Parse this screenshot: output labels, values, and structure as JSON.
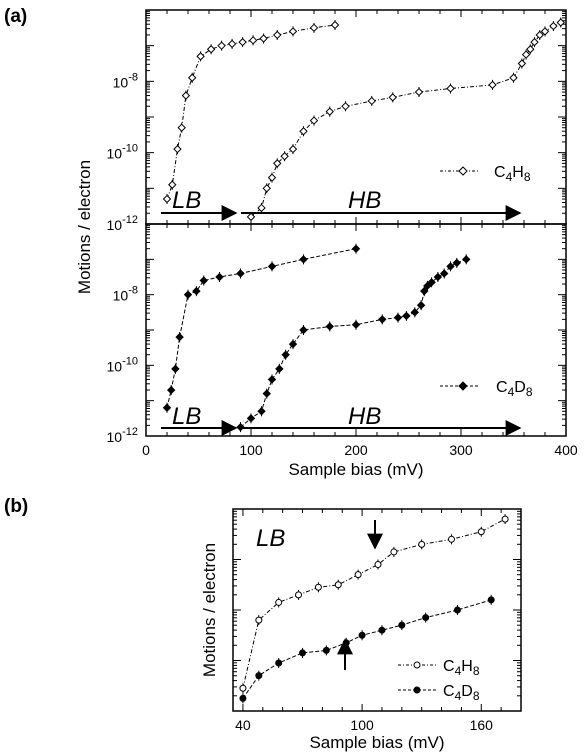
{
  "panels": {
    "a_label": "(a)",
    "b_label": "(b)"
  },
  "chart_data": [
    {
      "id": "a-top",
      "type": "scatter",
      "xlabel": "",
      "ylabel": "Motions / electron",
      "ylim_log10": [
        -12,
        -6
      ],
      "y_scale": "log",
      "y_ticks": [
        {
          "exp": -8,
          "label": "10",
          "sup": "-8"
        },
        {
          "exp": -10,
          "label": "10",
          "sup": "-10"
        },
        {
          "exp": -12,
          "label": "10",
          "sup": "-12"
        }
      ],
      "xlim": [
        0,
        400
      ],
      "x_ticks": [
        0,
        100,
        200,
        300,
        400
      ],
      "grid": false,
      "legend": {
        "position": "right",
        "entries": [
          {
            "text": "C",
            "sub": "4",
            "text2": "H",
            "sub2": "8"
          }
        ]
      },
      "annotations": {
        "left_label": "LB",
        "right_label": "HB"
      },
      "series": [
        {
          "marker": "open",
          "curve": "lb",
          "points": [
            {
              "x": 20,
              "y": -11.3
            },
            {
              "x": 25,
              "y": -10.9
            },
            {
              "x": 30,
              "y": -9.9
            },
            {
              "x": 34,
              "y": -9.3
            },
            {
              "x": 38,
              "y": -8.4
            },
            {
              "x": 44,
              "y": -7.9
            },
            {
              "x": 52,
              "y": -7.3
            },
            {
              "x": 62,
              "y": -7.1
            },
            {
              "x": 72,
              "y": -7.0
            },
            {
              "x": 82,
              "y": -6.95
            },
            {
              "x": 92,
              "y": -6.9
            },
            {
              "x": 102,
              "y": -6.85
            },
            {
              "x": 112,
              "y": -6.8
            },
            {
              "x": 125,
              "y": -6.7
            },
            {
              "x": 140,
              "y": -6.6
            },
            {
              "x": 160,
              "y": -6.5
            },
            {
              "x": 180,
              "y": -6.42
            }
          ]
        },
        {
          "marker": "open",
          "curve": "hb",
          "points": [
            {
              "x": 100,
              "y": -11.8
            },
            {
              "x": 110,
              "y": -11.55
            },
            {
              "x": 115,
              "y": -11.0
            },
            {
              "x": 120,
              "y": -10.7
            },
            {
              "x": 125,
              "y": -10.3
            },
            {
              "x": 132,
              "y": -10.1
            },
            {
              "x": 140,
              "y": -9.9
            },
            {
              "x": 150,
              "y": -9.4
            },
            {
              "x": 160,
              "y": -9.1
            },
            {
              "x": 175,
              "y": -8.85
            },
            {
              "x": 190,
              "y": -8.7
            },
            {
              "x": 215,
              "y": -8.55
            },
            {
              "x": 235,
              "y": -8.45
            },
            {
              "x": 260,
              "y": -8.3
            },
            {
              "x": 290,
              "y": -8.2
            },
            {
              "x": 330,
              "y": -8.1
            },
            {
              "x": 350,
              "y": -7.9
            },
            {
              "x": 358,
              "y": -7.5
            },
            {
              "x": 362,
              "y": -7.25
            },
            {
              "x": 366,
              "y": -7.1
            },
            {
              "x": 370,
              "y": -6.9
            },
            {
              "x": 375,
              "y": -6.7
            },
            {
              "x": 380,
              "y": -6.6
            },
            {
              "x": 388,
              "y": -6.45
            },
            {
              "x": 395,
              "y": -6.35
            }
          ]
        }
      ]
    },
    {
      "id": "a-bottom",
      "type": "scatter",
      "xlabel": "Sample bias (mV)",
      "ylabel": "Motions / electron",
      "ylim_log10": [
        -12,
        -6
      ],
      "y_scale": "log",
      "y_ticks": [
        {
          "exp": -8,
          "label": "10",
          "sup": "-8"
        },
        {
          "exp": -10,
          "label": "10",
          "sup": "-10"
        },
        {
          "exp": -12,
          "label": "10",
          "sup": "-12"
        }
      ],
      "xlim": [
        0,
        400
      ],
      "x_ticks": [
        0,
        100,
        200,
        300,
        400
      ],
      "x_tick_labels": [
        "0",
        "100",
        "200",
        "300",
        "400"
      ],
      "grid": false,
      "legend": {
        "position": "right",
        "entries": [
          {
            "text": "C",
            "sub": "4",
            "text2": "D",
            "sub2": "8"
          }
        ]
      },
      "annotations": {
        "left_label": "LB",
        "right_label": "HB"
      },
      "series": [
        {
          "marker": "filled",
          "curve": "lb",
          "points": [
            {
              "x": 20,
              "y": -11.2
            },
            {
              "x": 24,
              "y": -10.7
            },
            {
              "x": 28,
              "y": -10.1
            },
            {
              "x": 32,
              "y": -9.2
            },
            {
              "x": 40,
              "y": -8.0
            },
            {
              "x": 48,
              "y": -7.9
            },
            {
              "x": 55,
              "y": -7.6
            },
            {
              "x": 70,
              "y": -7.5
            },
            {
              "x": 90,
              "y": -7.4
            },
            {
              "x": 120,
              "y": -7.2
            },
            {
              "x": 150,
              "y": -7.0
            },
            {
              "x": 200,
              "y": -6.7
            }
          ]
        },
        {
          "marker": "filled",
          "curve": "hb",
          "points": [
            {
              "x": 90,
              "y": -11.75
            },
            {
              "x": 100,
              "y": -11.5
            },
            {
              "x": 110,
              "y": -11.3
            },
            {
              "x": 115,
              "y": -10.8
            },
            {
              "x": 120,
              "y": -10.4
            },
            {
              "x": 127,
              "y": -10.1
            },
            {
              "x": 133,
              "y": -9.7
            },
            {
              "x": 140,
              "y": -9.4
            },
            {
              "x": 150,
              "y": -9.0
            },
            {
              "x": 175,
              "y": -8.9
            },
            {
              "x": 200,
              "y": -8.85
            },
            {
              "x": 225,
              "y": -8.7
            },
            {
              "x": 240,
              "y": -8.65
            },
            {
              "x": 248,
              "y": -8.6
            },
            {
              "x": 256,
              "y": -8.5
            },
            {
              "x": 262,
              "y": -8.3
            },
            {
              "x": 265,
              "y": -7.9
            },
            {
              "x": 268,
              "y": -7.75
            },
            {
              "x": 272,
              "y": -7.65
            },
            {
              "x": 278,
              "y": -7.5
            },
            {
              "x": 284,
              "y": -7.4
            },
            {
              "x": 290,
              "y": -7.2
            },
            {
              "x": 296,
              "y": -7.1
            },
            {
              "x": 305,
              "y": -7.0
            }
          ]
        }
      ]
    },
    {
      "id": "b",
      "type": "scatter",
      "xlabel": "Sample bias (mV)",
      "ylabel": "Motions / electron",
      "y_scale": "log",
      "ylim_log10": [
        -2,
        2
      ],
      "xlim": [
        35,
        180
      ],
      "x_ticks": [
        40,
        100,
        160
      ],
      "x_tick_labels": [
        "40",
        "100",
        "160"
      ],
      "grid": false,
      "legend": {
        "position": "bottom-right",
        "entries": [
          {
            "text": "C",
            "sub": "4",
            "text2": "H",
            "sub2": "8"
          },
          {
            "text": "C",
            "sub": "4",
            "text2": "D",
            "sub2": "8"
          }
        ]
      },
      "annotations": {
        "left_label": "LB"
      },
      "series": [
        {
          "marker": "open",
          "points": [
            {
              "x": 40,
              "y": -1.55
            },
            {
              "x": 48,
              "y": -0.2
            },
            {
              "x": 58,
              "y": 0.15
            },
            {
              "x": 68,
              "y": 0.3
            },
            {
              "x": 78,
              "y": 0.45
            },
            {
              "x": 88,
              "y": 0.5
            },
            {
              "x": 98,
              "y": 0.7
            },
            {
              "x": 108,
              "y": 0.9
            },
            {
              "x": 116,
              "y": 1.15
            },
            {
              "x": 130,
              "y": 1.3
            },
            {
              "x": 145,
              "y": 1.4
            },
            {
              "x": 160,
              "y": 1.55
            },
            {
              "x": 172,
              "y": 1.8
            }
          ]
        },
        {
          "marker": "filled",
          "points": [
            {
              "x": 40,
              "y": -1.75
            },
            {
              "x": 48,
              "y": -1.3
            },
            {
              "x": 58,
              "y": -1.05
            },
            {
              "x": 70,
              "y": -0.85
            },
            {
              "x": 82,
              "y": -0.8
            },
            {
              "x": 92,
              "y": -0.65
            },
            {
              "x": 100,
              "y": -0.5
            },
            {
              "x": 110,
              "y": -0.4
            },
            {
              "x": 120,
              "y": -0.3
            },
            {
              "x": 132,
              "y": -0.15
            },
            {
              "x": 148,
              "y": 0.0
            },
            {
              "x": 165,
              "y": 0.2
            }
          ]
        }
      ]
    }
  ]
}
